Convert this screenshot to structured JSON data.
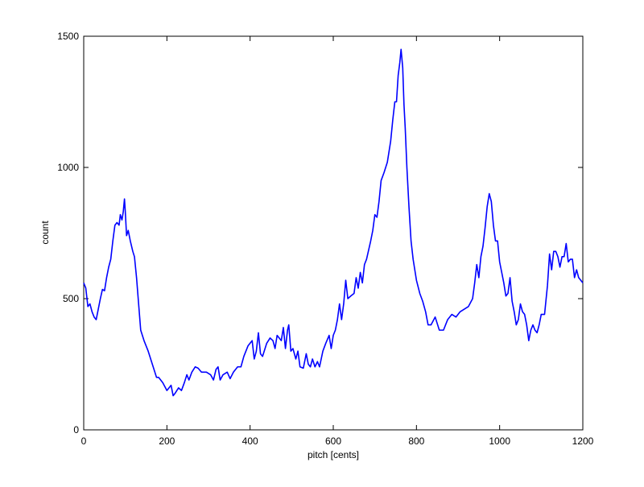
{
  "chart_data": {
    "type": "line",
    "xlabel": "pitch [cents]",
    "ylabel": "count",
    "xlim": [
      0,
      1200
    ],
    "xticks": [
      0,
      200,
      400,
      600,
      800,
      1000,
      1200
    ],
    "ylim": [
      0,
      1500
    ],
    "yticks": [
      0,
      500,
      1000,
      1500
    ],
    "grid": false,
    "series": [
      {
        "color": "#0000ff",
        "x": [
          0,
          5,
          10,
          15,
          20,
          25,
          30,
          35,
          40,
          45,
          50,
          55,
          60,
          65,
          70,
          75,
          80,
          85,
          88,
          92,
          95,
          98,
          100,
          103,
          107,
          112,
          118,
          122,
          127,
          132,
          137,
          145,
          155,
          165,
          175,
          180,
          190,
          200,
          205,
          210,
          215,
          220,
          228,
          235,
          242,
          248,
          253,
          260,
          268,
          275,
          283,
          295,
          305,
          312,
          318,
          323,
          328,
          335,
          345,
          352,
          360,
          370,
          378,
          385,
          390,
          395,
          400,
          405,
          410,
          415,
          420,
          425,
          430,
          440,
          448,
          455,
          460,
          465,
          470,
          475,
          480,
          485,
          490,
          493,
          498,
          503,
          510,
          515,
          520,
          528,
          535,
          540,
          545,
          550,
          556,
          562,
          567,
          575,
          582,
          590,
          595,
          600,
          605,
          610,
          615,
          620,
          625,
          630,
          635,
          642,
          650,
          655,
          660,
          665,
          670,
          675,
          680,
          690,
          695,
          700,
          705,
          710,
          715,
          722,
          730,
          738,
          743,
          748,
          752,
          756,
          760,
          763,
          767,
          770,
          773,
          777,
          782,
          787,
          792,
          800,
          808,
          815,
          822,
          828,
          835,
          845,
          855,
          865,
          875,
          885,
          895,
          905,
          915,
          925,
          935,
          940,
          945,
          950,
          955,
          960,
          965,
          970,
          975,
          980,
          985,
          990,
          995,
          1000,
          1005,
          1010,
          1015,
          1020,
          1025,
          1030,
          1035,
          1040,
          1045,
          1050,
          1055,
          1060,
          1065,
          1070,
          1075,
          1080,
          1085,
          1090,
          1095,
          1100,
          1108,
          1115,
          1120,
          1125,
          1130,
          1135,
          1140,
          1145,
          1150,
          1155,
          1160,
          1165,
          1170,
          1175,
          1180,
          1185,
          1190,
          1195,
          1200
        ],
        "values": [
          560,
          540,
          470,
          480,
          450,
          430,
          420,
          460,
          500,
          535,
          530,
          580,
          620,
          650,
          720,
          780,
          790,
          780,
          820,
          800,
          830,
          880,
          830,
          740,
          760,
          720,
          680,
          660,
          580,
          480,
          380,
          340,
          300,
          250,
          200,
          200,
          180,
          150,
          160,
          170,
          130,
          140,
          160,
          150,
          180,
          210,
          190,
          220,
          240,
          235,
          220,
          220,
          210,
          190,
          230,
          240,
          190,
          210,
          220,
          195,
          220,
          240,
          240,
          280,
          300,
          320,
          330,
          340,
          270,
          300,
          370,
          290,
          280,
          330,
          350,
          340,
          310,
          360,
          350,
          340,
          390,
          310,
          380,
          400,
          300,
          310,
          270,
          300,
          240,
          235,
          290,
          250,
          240,
          270,
          240,
          260,
          240,
          300,
          330,
          360,
          310,
          360,
          380,
          420,
          480,
          420,
          480,
          570,
          500,
          510,
          520,
          580,
          540,
          600,
          560,
          630,
          650,
          720,
          760,
          820,
          810,
          870,
          950,
          980,
          1020,
          1100,
          1180,
          1250,
          1250,
          1350,
          1400,
          1450,
          1380,
          1240,
          1150,
          1000,
          850,
          720,
          650,
          570,
          520,
          490,
          450,
          400,
          400,
          430,
          380,
          380,
          420,
          440,
          430,
          450,
          460,
          470,
          500,
          560,
          630,
          580,
          660,
          700,
          770,
          850,
          900,
          870,
          780,
          720,
          720,
          640,
          600,
          560,
          510,
          520,
          580,
          490,
          450,
          400,
          420,
          480,
          450,
          440,
          400,
          340,
          380,
          400,
          380,
          370,
          400,
          440,
          440,
          550,
          670,
          610,
          680,
          680,
          660,
          620,
          660,
          660,
          710,
          640,
          650,
          650,
          580,
          610,
          580,
          570,
          560
        ]
      }
    ]
  }
}
